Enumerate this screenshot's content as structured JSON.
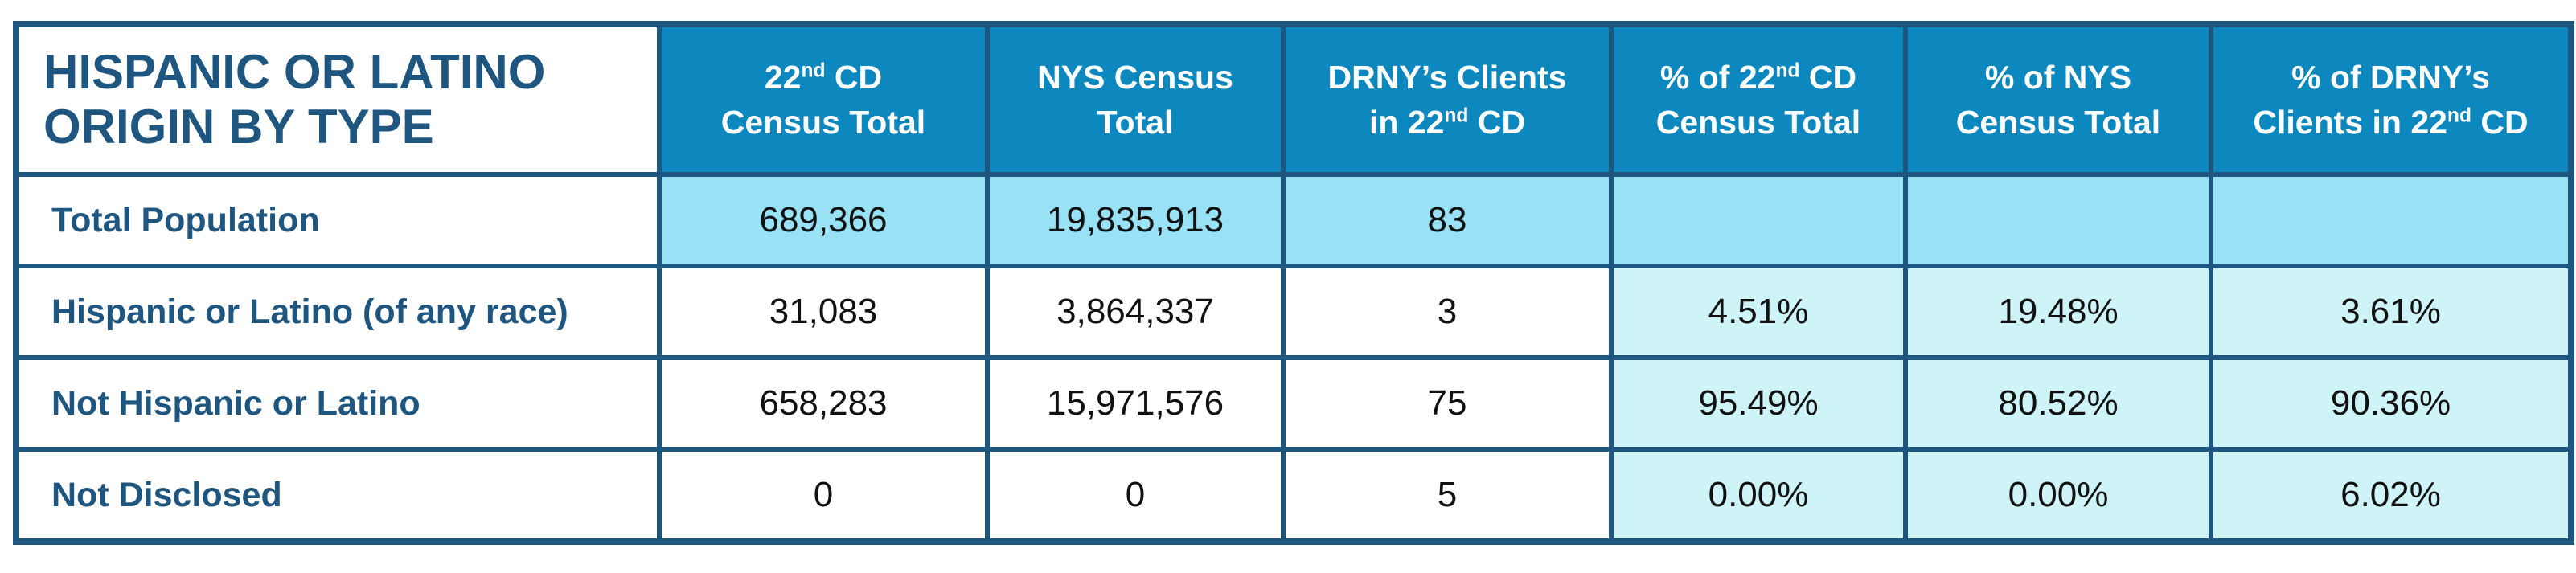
{
  "table": {
    "title": [
      "HISPANIC OR LATINO",
      "ORIGIN BY TYPE"
    ],
    "headers": [
      {
        "lines": [
          [
            "22",
            "nd",
            " CD"
          ],
          [
            "Census Total"
          ]
        ]
      },
      {
        "lines": [
          [
            "NYS Census"
          ],
          [
            "Total"
          ]
        ]
      },
      {
        "lines": [
          [
            "DRNY’s Clients"
          ],
          [
            "in 22",
            "nd",
            " CD"
          ]
        ]
      },
      {
        "lines": [
          [
            "% of 22",
            "nd",
            " CD"
          ],
          [
            "Census Total"
          ]
        ]
      },
      {
        "lines": [
          [
            "% of NYS"
          ],
          [
            "Census Total"
          ]
        ]
      },
      {
        "lines": [
          [
            "% of DRNY’s"
          ],
          [
            "Clients in 22",
            "nd",
            " CD"
          ]
        ]
      }
    ],
    "rows": [
      {
        "label": "Total Population",
        "values": [
          "689,366",
          "19,835,913",
          "83",
          "",
          "",
          ""
        ]
      },
      {
        "label": "Hispanic or Latino (of any race)",
        "values": [
          "31,083",
          "3,864,337",
          "3",
          "4.51%",
          "19.48%",
          "3.61%"
        ]
      },
      {
        "label": "Not Hispanic or Latino",
        "values": [
          "658,283",
          "15,971,576",
          "75",
          "95.49%",
          "80.52%",
          "90.36%"
        ]
      },
      {
        "label": "Not Disclosed",
        "values": [
          "0",
          "0",
          "5",
          "0.00%",
          "0.00%",
          "6.02%"
        ]
      }
    ]
  }
}
